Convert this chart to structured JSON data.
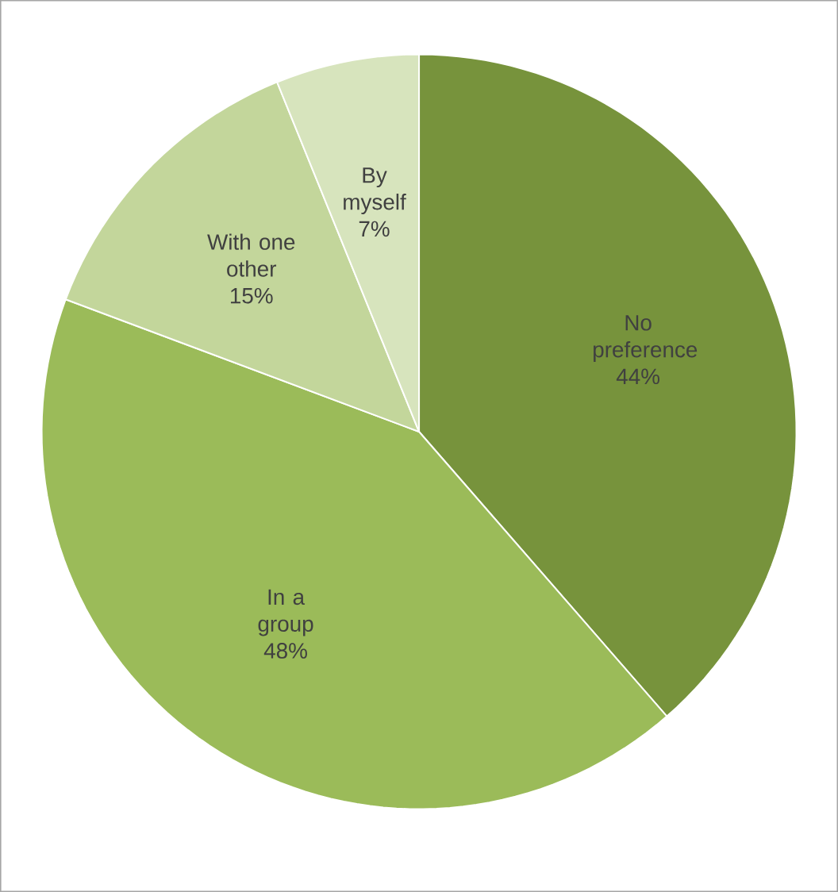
{
  "chart_data": {
    "type": "pie",
    "categories": [
      "No preference",
      "In a group",
      "With one other",
      "By myself"
    ],
    "values": [
      44,
      48,
      15,
      7
    ],
    "colors": [
      "#77933c",
      "#9bbb59",
      "#c3d69b",
      "#d7e4bd"
    ],
    "value_labels": [
      "44%",
      "48%",
      "15%",
      "7%"
    ]
  }
}
